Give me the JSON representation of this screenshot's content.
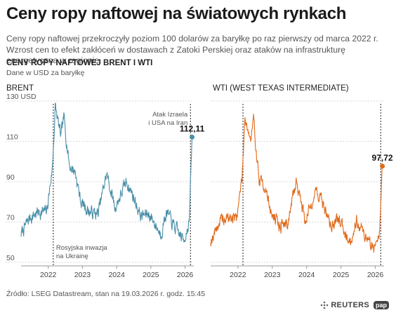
{
  "header": {
    "title": "Ceny ropy naftowej na światowych rynkach",
    "subtitle": "Ceny ropy naftowej przekroczyły poziom 100 dolarów za baryłkę po raz pierwszy od marca 2022 r. Wzrost cen to efekt zakłóceń w dostawach z Zatoki Perskiej oraz ataków na infrastrukturę energetyczną w regionie.",
    "chart_title": "CENY ROPY NAFTOWEJ BRENT I WTI",
    "chart_units": "Dane w USD za baryłkę"
  },
  "footer": {
    "source": "Źródło: LSEG Datastream, stan na 19.03.2026 r. godz. 15:45",
    "logo_reuters": "REUTERS",
    "logo_pap": "pap"
  },
  "chart_data": [
    {
      "type": "line",
      "title": "BRENT",
      "color": "#4a8fa8",
      "ylim": [
        50,
        130
      ],
      "xlim": [
        "2021-03",
        "2026-03"
      ],
      "x_ticks": [
        "2022",
        "2023",
        "2024",
        "2025",
        "2026"
      ],
      "y_ticks": [
        "130 USD",
        "110",
        "90",
        "70",
        "50"
      ],
      "grid": true,
      "annotations": [
        {
          "text": "Rosyjska inwazja na Ukrainę",
          "date": "2022-02-24"
        },
        {
          "text": "Atak Izraela i USA na Iran",
          "date": "2026-02-28"
        }
      ],
      "last_value_label": "112,11",
      "series": [
        {
          "name": "BRENT",
          "x": [
            "2021-03",
            "2021-06",
            "2021-09",
            "2021-12",
            "2022-02",
            "2022-03",
            "2022-05",
            "2022-06",
            "2022-08",
            "2022-10",
            "2022-12",
            "2023-03",
            "2023-06",
            "2023-09",
            "2023-12",
            "2024-04",
            "2024-06",
            "2024-09",
            "2024-12",
            "2025-04",
            "2025-06",
            "2025-09",
            "2025-12",
            "2026-02",
            "2026-03"
          ],
          "values": [
            64,
            72,
            75,
            75,
            97,
            127,
            112,
            122,
            98,
            95,
            80,
            75,
            74,
            94,
            77,
            90,
            84,
            73,
            74,
            64,
            75,
            67,
            61,
            70,
            112.11
          ]
        }
      ]
    },
    {
      "type": "line",
      "title": "WTI (WEST TEXAS INTERMEDIATE)",
      "color": "#e06a1b",
      "ylim": [
        50,
        130
      ],
      "xlim": [
        "2021-03",
        "2026-03"
      ],
      "x_ticks": [
        "2022",
        "2023",
        "2024",
        "2025",
        "2026"
      ],
      "grid": true,
      "last_value_label": "97,72",
      "series": [
        {
          "name": "WTI",
          "x": [
            "2021-03",
            "2021-06",
            "2021-09",
            "2021-12",
            "2022-02",
            "2022-03",
            "2022-05",
            "2022-06",
            "2022-08",
            "2022-10",
            "2022-12",
            "2023-03",
            "2023-06",
            "2023-09",
            "2023-12",
            "2024-04",
            "2024-06",
            "2024-09",
            "2024-12",
            "2025-04",
            "2025-06",
            "2025-09",
            "2025-12",
            "2026-02",
            "2026-03"
          ],
          "values": [
            61,
            70,
            72,
            72,
            92,
            123,
            110,
            120,
            90,
            88,
            75,
            68,
            70,
            91,
            71,
            86,
            80,
            68,
            71,
            60,
            72,
            63,
            57,
            65,
            97.72
          ]
        }
      ]
    }
  ]
}
